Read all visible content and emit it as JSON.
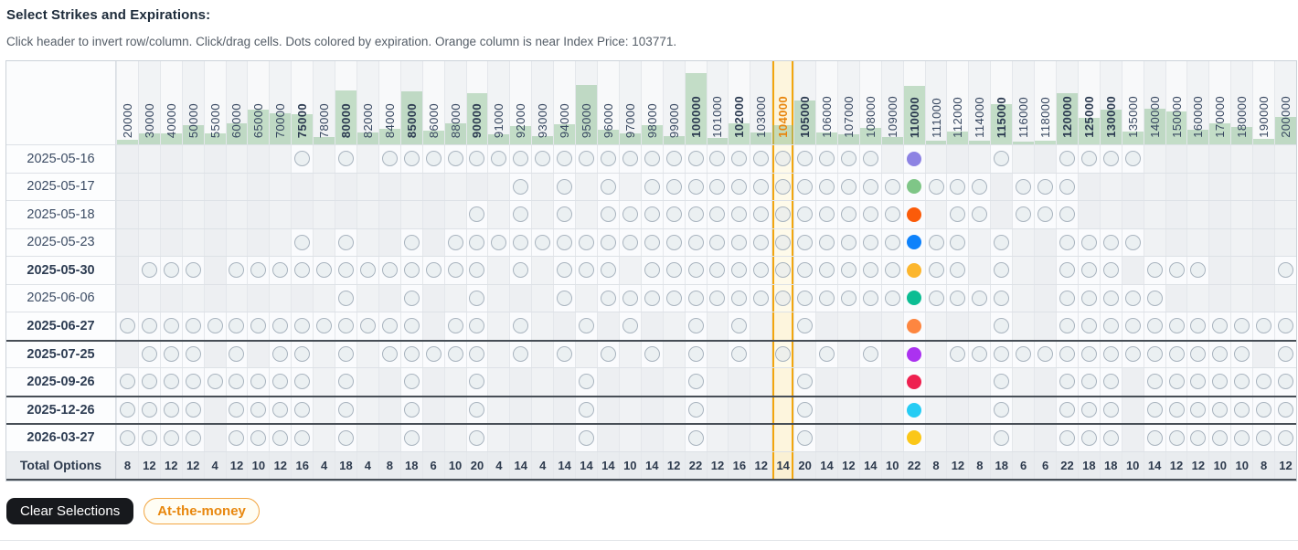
{
  "title": "Select Strikes and Expirations:",
  "subtitle": "Click header to invert row/column. Click/drag cells. Dots colored by expiration. Orange column is near Index Price: 103771.",
  "index_price": 103771,
  "buttons": {
    "clear": "Clear Selections",
    "atm": "At-the-money"
  },
  "colors": {
    "highlight_border": "#f2a60e",
    "highlight_bg": "#fdf5dd",
    "bar_green": "rgba(131,187,138,0.45)",
    "atm_orange": "#e8870e",
    "clear_black": "#17191d"
  },
  "table": {
    "total_label": "Total Options",
    "highlight_strike": "104000",
    "selected_strike": "110000",
    "strikes": [
      {
        "label": "20000",
        "bold": false,
        "bar": 5,
        "total": 8
      },
      {
        "label": "30000",
        "bold": false,
        "bar": 12,
        "total": 12
      },
      {
        "label": "40000",
        "bold": false,
        "bar": 12,
        "total": 12
      },
      {
        "label": "50000",
        "bold": false,
        "bar": 21,
        "total": 12
      },
      {
        "label": "55000",
        "bold": false,
        "bar": 12,
        "total": 4
      },
      {
        "label": "60000",
        "bold": false,
        "bar": 23,
        "total": 12
      },
      {
        "label": "65000",
        "bold": false,
        "bar": 38,
        "total": 10
      },
      {
        "label": "70000",
        "bold": false,
        "bar": 34,
        "total": 12
      },
      {
        "label": "75000",
        "bold": true,
        "bar": 33,
        "total": 16
      },
      {
        "label": "78000",
        "bold": false,
        "bar": 8,
        "total": 4
      },
      {
        "label": "80000",
        "bold": true,
        "bar": 59,
        "total": 18
      },
      {
        "label": "82000",
        "bold": false,
        "bar": 13,
        "total": 4
      },
      {
        "label": "84000",
        "bold": false,
        "bar": 17,
        "total": 8
      },
      {
        "label": "85000",
        "bold": true,
        "bar": 58,
        "total": 18
      },
      {
        "label": "86000",
        "bold": false,
        "bar": 15,
        "total": 6
      },
      {
        "label": "88000",
        "bold": false,
        "bar": 23,
        "total": 10
      },
      {
        "label": "90000",
        "bold": true,
        "bar": 56,
        "total": 20
      },
      {
        "label": "91000",
        "bold": false,
        "bar": 11,
        "total": 4
      },
      {
        "label": "92000",
        "bold": false,
        "bar": 20,
        "total": 14
      },
      {
        "label": "93000",
        "bold": false,
        "bar": 9,
        "total": 4
      },
      {
        "label": "94000",
        "bold": false,
        "bar": 22,
        "total": 14
      },
      {
        "label": "95000",
        "bold": false,
        "bar": 65,
        "total": 14
      },
      {
        "label": "96000",
        "bold": false,
        "bar": 16,
        "total": 14
      },
      {
        "label": "97000",
        "bold": false,
        "bar": 12,
        "total": 10
      },
      {
        "label": "98000",
        "bold": false,
        "bar": 21,
        "total": 14
      },
      {
        "label": "99000",
        "bold": false,
        "bar": 9,
        "total": 12
      },
      {
        "label": "100000",
        "bold": true,
        "bar": 78,
        "total": 22
      },
      {
        "label": "101000",
        "bold": false,
        "bar": 7,
        "total": 12
      },
      {
        "label": "102000",
        "bold": true,
        "bar": 23,
        "total": 16
      },
      {
        "label": "103000",
        "bold": false,
        "bar": 13,
        "total": 12
      },
      {
        "label": "104000",
        "bold": true,
        "bar": 21,
        "total": 14
      },
      {
        "label": "105000",
        "bold": true,
        "bar": 48,
        "total": 20
      },
      {
        "label": "106000",
        "bold": false,
        "bar": 13,
        "total": 14
      },
      {
        "label": "107000",
        "bold": false,
        "bar": 11,
        "total": 12
      },
      {
        "label": "108000",
        "bold": false,
        "bar": 18,
        "total": 14
      },
      {
        "label": "109000",
        "bold": false,
        "bar": 8,
        "total": 10
      },
      {
        "label": "110000",
        "bold": true,
        "bar": 64,
        "total": 22
      },
      {
        "label": "111000",
        "bold": false,
        "bar": 4,
        "total": 8
      },
      {
        "label": "112000",
        "bold": false,
        "bar": 14,
        "total": 12
      },
      {
        "label": "114000",
        "bold": false,
        "bar": 4,
        "total": 8
      },
      {
        "label": "115000",
        "bold": true,
        "bar": 44,
        "total": 18
      },
      {
        "label": "116000",
        "bold": false,
        "bar": 3,
        "total": 6
      },
      {
        "label": "118000",
        "bold": false,
        "bar": 4,
        "total": 6
      },
      {
        "label": "120000",
        "bold": true,
        "bar": 56,
        "total": 22
      },
      {
        "label": "125000",
        "bold": true,
        "bar": 29,
        "total": 18
      },
      {
        "label": "130000",
        "bold": true,
        "bar": 38,
        "total": 18
      },
      {
        "label": "135000",
        "bold": false,
        "bar": 14,
        "total": 10
      },
      {
        "label": "140000",
        "bold": false,
        "bar": 39,
        "total": 14
      },
      {
        "label": "150000",
        "bold": false,
        "bar": 36,
        "total": 12
      },
      {
        "label": "160000",
        "bold": false,
        "bar": 16,
        "total": 12
      },
      {
        "label": "170000",
        "bold": false,
        "bar": 23,
        "total": 10
      },
      {
        "label": "180000",
        "bold": false,
        "bar": 19,
        "total": 10
      },
      {
        "label": "190000",
        "bold": false,
        "bar": 6,
        "total": 8
      },
      {
        "label": "200000",
        "bold": false,
        "bar": 30,
        "total": 12
      }
    ],
    "rows": [
      {
        "date": "2025-05-16",
        "bold": false,
        "group_start": false,
        "color": "#8d83e3",
        "cells": [
          "75000",
          "80000",
          "84000",
          "85000",
          "86000",
          "88000",
          "90000",
          "91000",
          "92000",
          "93000",
          "94000",
          "95000",
          "96000",
          "97000",
          "98000",
          "99000",
          "100000",
          "101000",
          "102000",
          "103000",
          "104000",
          "105000",
          "106000",
          "107000",
          "108000",
          "115000",
          "120000",
          "125000",
          "130000",
          "135000"
        ]
      },
      {
        "date": "2025-05-17",
        "bold": false,
        "group_start": false,
        "color": "#7fc687",
        "cells": [
          "92000",
          "94000",
          "96000",
          "98000",
          "99000",
          "100000",
          "101000",
          "102000",
          "103000",
          "104000",
          "105000",
          "106000",
          "107000",
          "108000",
          "109000",
          "111000",
          "112000",
          "114000",
          "116000",
          "118000",
          "120000"
        ]
      },
      {
        "date": "2025-05-18",
        "bold": false,
        "group_start": false,
        "color": "#fb5b09",
        "cells": [
          "90000",
          "92000",
          "94000",
          "96000",
          "97000",
          "98000",
          "99000",
          "100000",
          "101000",
          "102000",
          "103000",
          "104000",
          "105000",
          "106000",
          "107000",
          "108000",
          "109000",
          "112000",
          "114000",
          "116000",
          "118000",
          "120000"
        ]
      },
      {
        "date": "2025-05-23",
        "bold": false,
        "group_start": false,
        "color": "#0e82fb",
        "cells": [
          "75000",
          "80000",
          "85000",
          "88000",
          "90000",
          "91000",
          "92000",
          "93000",
          "94000",
          "95000",
          "96000",
          "97000",
          "98000",
          "99000",
          "100000",
          "101000",
          "102000",
          "103000",
          "104000",
          "105000",
          "106000",
          "107000",
          "108000",
          "109000",
          "111000",
          "112000",
          "115000",
          "120000",
          "125000",
          "130000",
          "135000"
        ]
      },
      {
        "date": "2025-05-30",
        "bold": true,
        "group_start": false,
        "color": "#fcb62e",
        "cells": [
          "30000",
          "40000",
          "50000",
          "60000",
          "65000",
          "70000",
          "75000",
          "78000",
          "80000",
          "82000",
          "84000",
          "85000",
          "86000",
          "88000",
          "90000",
          "92000",
          "94000",
          "95000",
          "96000",
          "98000",
          "99000",
          "100000",
          "101000",
          "102000",
          "103000",
          "104000",
          "105000",
          "106000",
          "107000",
          "108000",
          "109000",
          "111000",
          "112000",
          "115000",
          "120000",
          "125000",
          "130000",
          "140000",
          "150000",
          "160000",
          "200000"
        ]
      },
      {
        "date": "2025-06-06",
        "bold": false,
        "group_start": false,
        "color": "#0cbd93",
        "cells": [
          "80000",
          "85000",
          "90000",
          "94000",
          "96000",
          "97000",
          "98000",
          "99000",
          "100000",
          "101000",
          "102000",
          "103000",
          "104000",
          "105000",
          "106000",
          "107000",
          "108000",
          "109000",
          "111000",
          "112000",
          "114000",
          "115000",
          "120000",
          "125000",
          "130000",
          "135000",
          "140000"
        ]
      },
      {
        "date": "2025-06-27",
        "bold": true,
        "group_start": false,
        "color": "#fd8640",
        "cells": [
          "20000",
          "30000",
          "40000",
          "50000",
          "55000",
          "60000",
          "65000",
          "70000",
          "75000",
          "78000",
          "80000",
          "82000",
          "84000",
          "85000",
          "88000",
          "90000",
          "92000",
          "95000",
          "97000",
          "100000",
          "102000",
          "105000",
          "115000",
          "120000",
          "125000",
          "130000",
          "135000",
          "140000",
          "150000",
          "160000",
          "170000",
          "180000",
          "190000",
          "200000"
        ]
      },
      {
        "date": "2025-07-25",
        "bold": true,
        "group_start": true,
        "color": "#ab32f0",
        "cells": [
          "30000",
          "40000",
          "50000",
          "60000",
          "70000",
          "75000",
          "80000",
          "84000",
          "85000",
          "86000",
          "88000",
          "90000",
          "92000",
          "94000",
          "96000",
          "98000",
          "100000",
          "102000",
          "104000",
          "106000",
          "108000",
          "112000",
          "114000",
          "115000",
          "116000",
          "118000",
          "120000",
          "125000",
          "130000",
          "135000",
          "140000",
          "150000",
          "160000",
          "170000",
          "180000",
          "200000"
        ]
      },
      {
        "date": "2025-09-26",
        "bold": true,
        "group_start": false,
        "color": "#ee2150",
        "cells": [
          "20000",
          "30000",
          "40000",
          "50000",
          "55000",
          "60000",
          "65000",
          "70000",
          "75000",
          "80000",
          "85000",
          "90000",
          "95000",
          "100000",
          "105000",
          "115000",
          "120000",
          "125000",
          "130000",
          "140000",
          "150000",
          "160000",
          "170000",
          "180000",
          "190000",
          "200000"
        ]
      },
      {
        "date": "2025-12-26",
        "bold": true,
        "group_start": true,
        "color": "#26ccf4",
        "cells": [
          "20000",
          "30000",
          "40000",
          "50000",
          "60000",
          "65000",
          "70000",
          "75000",
          "80000",
          "85000",
          "90000",
          "95000",
          "100000",
          "105000",
          "115000",
          "120000",
          "125000",
          "130000",
          "140000",
          "150000",
          "160000",
          "170000",
          "180000",
          "190000",
          "200000"
        ]
      },
      {
        "date": "2026-03-27",
        "bold": true,
        "group_start": true,
        "color": "#fbc718",
        "cells": [
          "20000",
          "30000",
          "40000",
          "50000",
          "60000",
          "65000",
          "70000",
          "75000",
          "80000",
          "85000",
          "90000",
          "95000",
          "100000",
          "105000",
          "115000",
          "120000",
          "125000",
          "130000",
          "140000",
          "150000",
          "160000",
          "170000",
          "180000",
          "190000",
          "200000"
        ]
      }
    ]
  }
}
